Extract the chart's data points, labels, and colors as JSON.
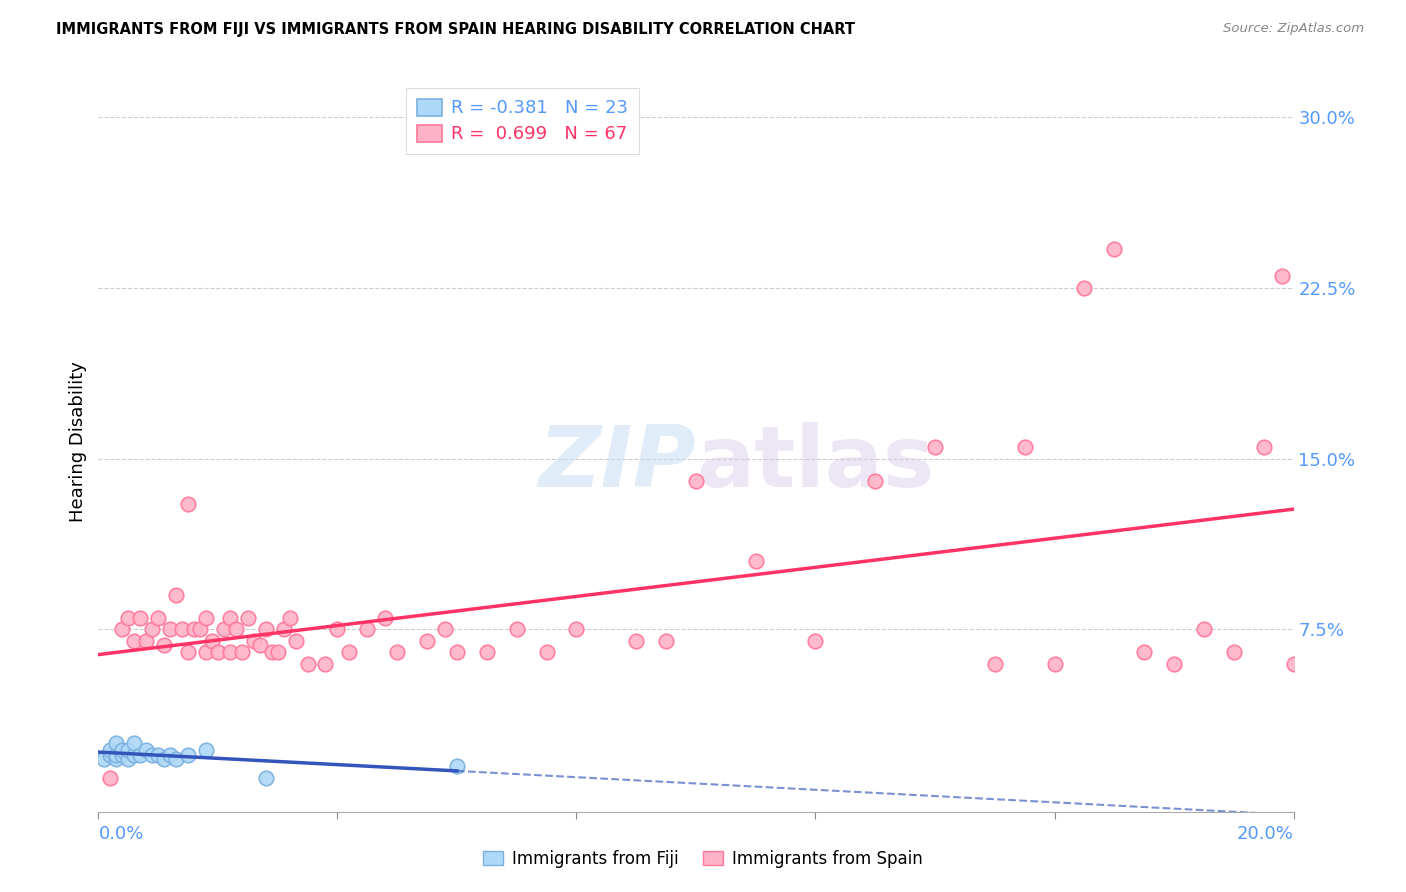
{
  "title": "IMMIGRANTS FROM FIJI VS IMMIGRANTS FROM SPAIN HEARING DISABILITY CORRELATION CHART",
  "source": "Source: ZipAtlas.com",
  "ylabel": "Hearing Disability",
  "fiji_color": "#add8f7",
  "fiji_edge_color": "#7ab0e0",
  "spain_color": "#ffb3c8",
  "spain_edge_color": "#ff7799",
  "fiji_R": -0.381,
  "fiji_N": 23,
  "spain_R": 0.699,
  "spain_N": 67,
  "fiji_line_color": "#3355bb",
  "spain_line_color": "#ff3366",
  "legend_label_fiji": "Immigrants from Fiji",
  "legend_label_spain": "Immigrants from Spain",
  "tick_color": "#5599ff",
  "xlim": [
    0.0,
    0.2
  ],
  "ylim": [
    -0.005,
    0.32
  ],
  "ytick_vals": [
    0.0,
    0.075,
    0.15,
    0.225,
    0.3
  ],
  "ytick_labels": [
    "",
    "7.5%",
    "15.0%",
    "22.5%",
    "30.0%"
  ],
  "fiji_x": [
    0.001,
    0.002,
    0.002,
    0.003,
    0.003,
    0.003,
    0.004,
    0.004,
    0.005,
    0.005,
    0.006,
    0.006,
    0.007,
    0.008,
    0.009,
    0.01,
    0.011,
    0.012,
    0.013,
    0.015,
    0.018,
    0.028,
    0.06
  ],
  "fiji_y": [
    0.018,
    0.02,
    0.022,
    0.018,
    0.02,
    0.025,
    0.02,
    0.022,
    0.018,
    0.022,
    0.02,
    0.025,
    0.02,
    0.022,
    0.02,
    0.02,
    0.018,
    0.02,
    0.018,
    0.02,
    0.022,
    0.01,
    0.015
  ],
  "spain_x": [
    0.002,
    0.004,
    0.005,
    0.006,
    0.007,
    0.008,
    0.009,
    0.01,
    0.011,
    0.012,
    0.013,
    0.014,
    0.015,
    0.015,
    0.016,
    0.017,
    0.018,
    0.018,
    0.019,
    0.02,
    0.021,
    0.022,
    0.022,
    0.023,
    0.024,
    0.025,
    0.026,
    0.027,
    0.028,
    0.029,
    0.03,
    0.031,
    0.032,
    0.033,
    0.035,
    0.038,
    0.04,
    0.042,
    0.045,
    0.048,
    0.05,
    0.055,
    0.058,
    0.06,
    0.065,
    0.07,
    0.075,
    0.08,
    0.09,
    0.095,
    0.1,
    0.11,
    0.12,
    0.13,
    0.14,
    0.15,
    0.155,
    0.16,
    0.165,
    0.17,
    0.175,
    0.18,
    0.185,
    0.19,
    0.195,
    0.198,
    0.2
  ],
  "spain_y": [
    0.01,
    0.075,
    0.08,
    0.07,
    0.08,
    0.07,
    0.075,
    0.08,
    0.068,
    0.075,
    0.09,
    0.075,
    0.065,
    0.13,
    0.075,
    0.075,
    0.065,
    0.08,
    0.07,
    0.065,
    0.075,
    0.065,
    0.08,
    0.075,
    0.065,
    0.08,
    0.07,
    0.068,
    0.075,
    0.065,
    0.065,
    0.075,
    0.08,
    0.07,
    0.06,
    0.06,
    0.075,
    0.065,
    0.075,
    0.08,
    0.065,
    0.07,
    0.075,
    0.065,
    0.065,
    0.075,
    0.065,
    0.075,
    0.07,
    0.07,
    0.14,
    0.105,
    0.07,
    0.14,
    0.155,
    0.06,
    0.155,
    0.06,
    0.225,
    0.242,
    0.065,
    0.06,
    0.075,
    0.065,
    0.155,
    0.23,
    0.06
  ]
}
